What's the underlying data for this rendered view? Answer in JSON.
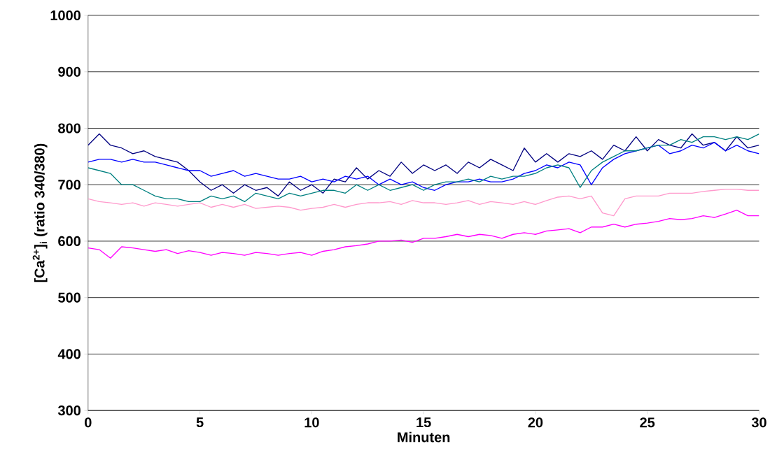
{
  "chart_data": {
    "type": "line",
    "xlabel": "Minuten",
    "ylabel": "[Ca$^{2+}$]$_{i}$ (ratio 340/380)",
    "x": [
      0,
      0.5,
      1,
      1.5,
      2,
      2.5,
      3,
      3.5,
      4,
      4.5,
      5,
      5.5,
      6,
      6.5,
      7,
      7.5,
      8,
      8.5,
      9,
      9.5,
      10,
      10.5,
      11,
      11.5,
      12,
      12.5,
      13,
      13.5,
      14,
      14.5,
      15,
      15.5,
      16,
      16.5,
      17,
      17.5,
      18,
      18.5,
      19,
      19.5,
      20,
      20.5,
      21,
      21.5,
      22,
      22.5,
      23,
      23.5,
      24,
      24.5,
      25,
      25.5,
      26,
      26.5,
      27,
      27.5,
      28,
      28.5,
      29,
      29.5,
      30
    ],
    "series": [
      {
        "color": "#000080",
        "values": [
          770,
          790,
          770,
          765,
          755,
          760,
          750,
          745,
          740,
          725,
          705,
          690,
          700,
          685,
          700,
          690,
          695,
          680,
          705,
          690,
          700,
          685,
          710,
          705,
          730,
          710,
          725,
          715,
          740,
          720,
          735,
          725,
          735,
          720,
          740,
          730,
          745,
          735,
          725,
          765,
          740,
          755,
          740,
          755,
          750,
          760,
          745,
          770,
          760,
          785,
          760,
          780,
          770,
          765,
          790,
          770,
          775,
          760,
          785,
          765,
          770
        ]
      },
      {
        "color": "#0000ff",
        "values": [
          740,
          745,
          745,
          740,
          745,
          740,
          740,
          735,
          730,
          725,
          725,
          715,
          720,
          725,
          715,
          720,
          715,
          710,
          710,
          715,
          705,
          710,
          705,
          715,
          710,
          715,
          700,
          710,
          700,
          705,
          695,
          690,
          700,
          705,
          705,
          710,
          705,
          705,
          710,
          720,
          725,
          735,
          730,
          740,
          735,
          700,
          730,
          745,
          755,
          760,
          765,
          770,
          755,
          760,
          770,
          765,
          775,
          760,
          770,
          760,
          755
        ]
      },
      {
        "color": "#008080",
        "values": [
          730,
          725,
          720,
          700,
          700,
          690,
          680,
          675,
          675,
          670,
          670,
          680,
          675,
          680,
          670,
          685,
          680,
          675,
          685,
          680,
          685,
          690,
          690,
          685,
          700,
          690,
          700,
          690,
          695,
          700,
          690,
          700,
          705,
          705,
          710,
          705,
          715,
          710,
          715,
          715,
          720,
          730,
          735,
          730,
          695,
          725,
          740,
          750,
          760,
          760,
          765,
          770,
          770,
          780,
          775,
          785,
          785,
          780,
          785,
          780,
          790
        ]
      },
      {
        "color": "#ff99cc",
        "values": [
          675,
          670,
          668,
          665,
          668,
          662,
          668,
          665,
          662,
          665,
          668,
          660,
          665,
          660,
          665,
          658,
          660,
          662,
          660,
          655,
          658,
          660,
          665,
          660,
          665,
          668,
          668,
          670,
          665,
          672,
          668,
          668,
          665,
          668,
          672,
          665,
          670,
          668,
          665,
          670,
          665,
          672,
          678,
          680,
          675,
          680,
          650,
          645,
          675,
          680,
          680,
          680,
          685,
          685,
          685,
          688,
          690,
          692,
          692,
          690,
          690
        ]
      },
      {
        "color": "#ff00ff",
        "values": [
          588,
          585,
          570,
          590,
          588,
          585,
          582,
          585,
          578,
          583,
          580,
          575,
          580,
          578,
          575,
          580,
          578,
          575,
          578,
          580,
          575,
          582,
          585,
          590,
          592,
          595,
          600,
          600,
          602,
          598,
          605,
          605,
          608,
          612,
          608,
          612,
          610,
          605,
          612,
          615,
          612,
          618,
          620,
          622,
          615,
          625,
          625,
          630,
          625,
          630,
          632,
          635,
          640,
          638,
          640,
          645,
          642,
          648,
          655,
          645,
          645
        ]
      }
    ],
    "xlim": [
      0,
      30
    ],
    "xticks": [
      0,
      5,
      10,
      15,
      20,
      25,
      30
    ],
    "ylim": [
      300,
      1000
    ],
    "yticks": [
      300,
      400,
      500,
      600,
      700,
      800,
      900,
      1000
    ],
    "grid": "y",
    "marker": "none",
    "line_style": "solid"
  }
}
